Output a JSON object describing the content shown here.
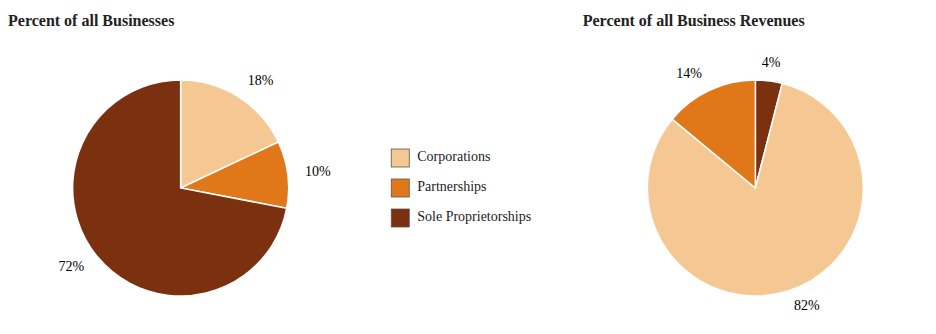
{
  "chart_data": [
    {
      "type": "pie",
      "title": "Percent of all Businesses",
      "categories": [
        "Corporations",
        "Partnerships",
        "Sole Proprietorships"
      ],
      "values": [
        18,
        10,
        72
      ],
      "value_labels": [
        "18%",
        "10%",
        "72%"
      ],
      "colors": [
        "#F5C893",
        "#E07718",
        "#7B3010"
      ],
      "data_labels": true,
      "legend": "right"
    },
    {
      "type": "pie",
      "title": "Percent of all Business Revenues",
      "categories": [
        "Sole Proprietorships",
        "Corporations",
        "Partnerships"
      ],
      "values": [
        4,
        82,
        14
      ],
      "value_labels": [
        "4%",
        "82%",
        "14%"
      ],
      "data_labels": true
    }
  ]
}
